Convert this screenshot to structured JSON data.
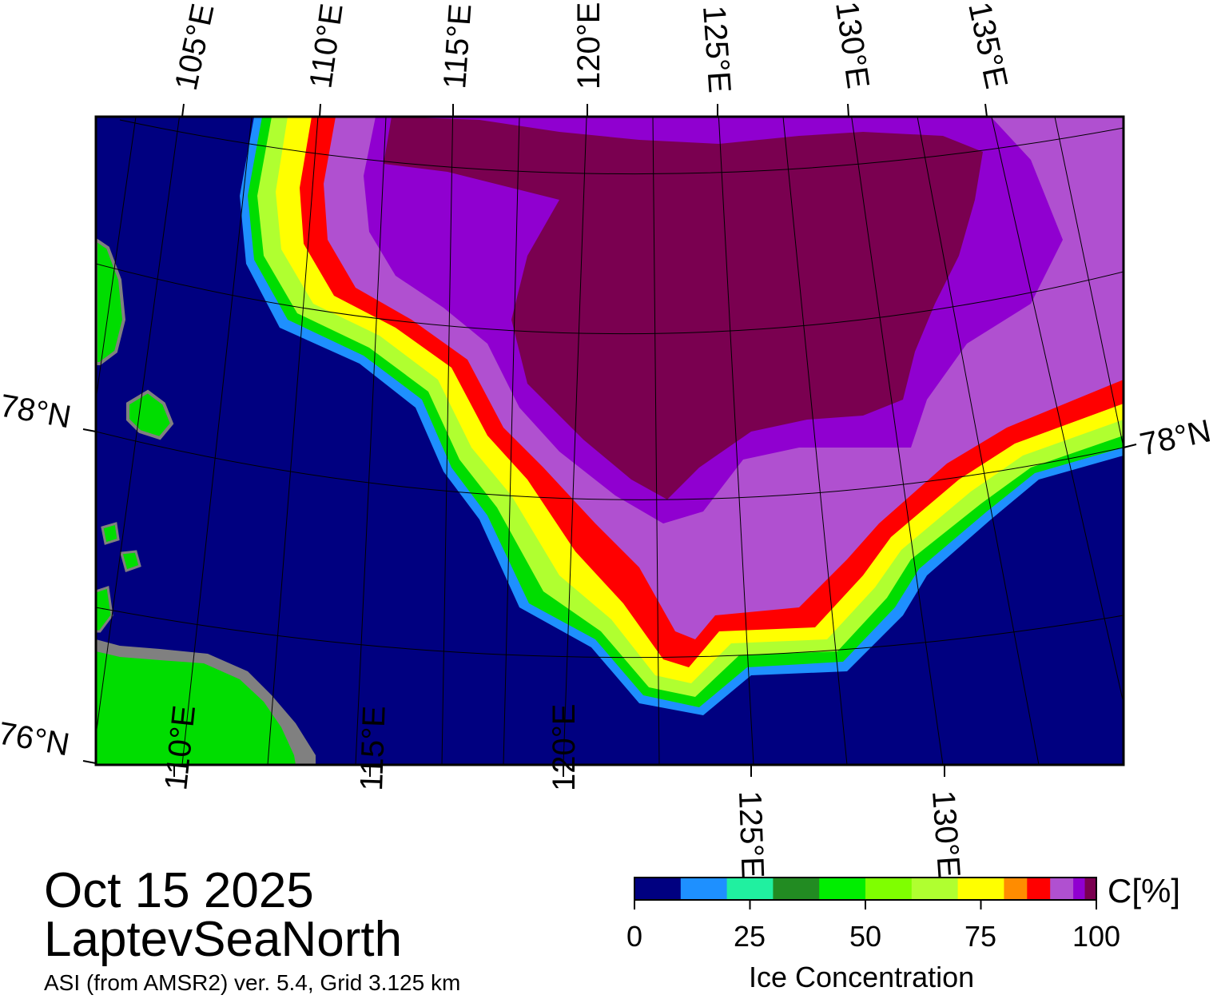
{
  "map": {
    "region": "LaptevSeaNorth",
    "lon_labels_top": [
      "105°E",
      "110°E",
      "115°E",
      "120°E",
      "125°E",
      "130°E",
      "135°E"
    ],
    "lon_labels_bottom": [
      "110°E",
      "115°E",
      "120°E",
      "125°E",
      "130°E"
    ],
    "lat_labels_left": [
      "78°N",
      "76°N"
    ],
    "lat_labels_right": [
      "78°N"
    ],
    "colors": {
      "ocean": "#000080",
      "land": "#00dd00",
      "coast_gray": "#808080",
      "ice_100": "#7a0050",
      "ice_95": "#9000d0",
      "ice_90": "#b050d0"
    }
  },
  "title": {
    "date": "Oct 15 2025",
    "region": "LaptevSeaNorth",
    "product": "ASI (from AMSR2) ver. 5.4,  Grid 3.125 km"
  },
  "colorbar": {
    "title": "Ice Concentration",
    "unit": "C[%]",
    "ticks": [
      "0",
      "25",
      "50",
      "75",
      "100"
    ],
    "colors": [
      "#000080",
      "#1e90ff",
      "#20f0a0",
      "#228b22",
      "#00ee00",
      "#7fff00",
      "#b0ff30",
      "#ffff00",
      "#ff8c00",
      "#ff0000",
      "#b050d0",
      "#9000d0",
      "#7a0050"
    ]
  }
}
